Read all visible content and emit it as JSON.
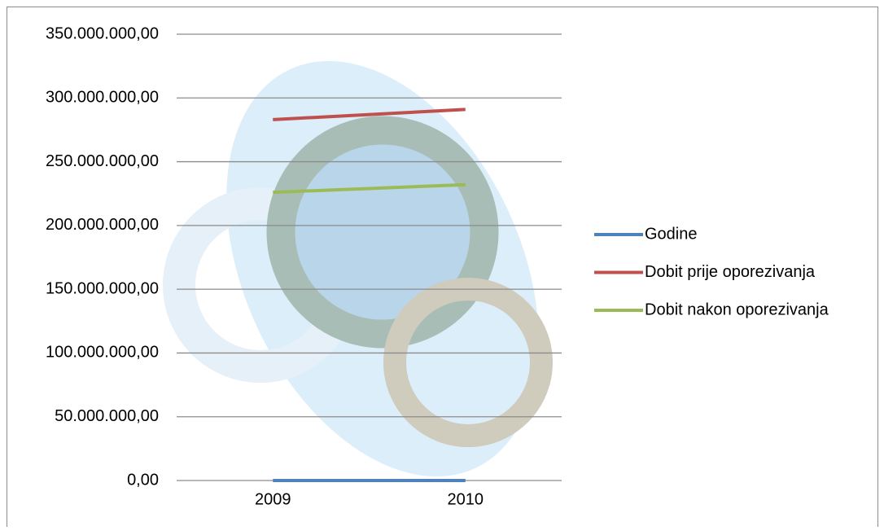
{
  "chart_data": {
    "type": "line",
    "categories": [
      "2009",
      "2010"
    ],
    "series": [
      {
        "name": "Godine",
        "color": "#4f81bd",
        "values": [
          2009,
          2010
        ]
      },
      {
        "name": "Dobit prije oporezivanja",
        "color": "#c0504d",
        "values": [
          283000000,
          291000000
        ]
      },
      {
        "name": "Dobit nakon oporezivanja",
        "color": "#9bbb59",
        "values": [
          226000000,
          232000000
        ]
      }
    ],
    "ylim": [
      0,
      350000000
    ],
    "yticks": [
      {
        "value": 0,
        "label": "0,00"
      },
      {
        "value": 50000000,
        "label": "50.000.000,00"
      },
      {
        "value": 100000000,
        "label": "100.000.000,00"
      },
      {
        "value": 150000000,
        "label": "150.000.000,00"
      },
      {
        "value": 200000000,
        "label": "200.000.000,00"
      },
      {
        "value": 250000000,
        "label": "250.000.000,00"
      },
      {
        "value": 300000000,
        "label": "300.000.000,00"
      },
      {
        "value": 350000000,
        "label": "350.000.000,00"
      }
    ],
    "grid": true,
    "legend": "right"
  }
}
